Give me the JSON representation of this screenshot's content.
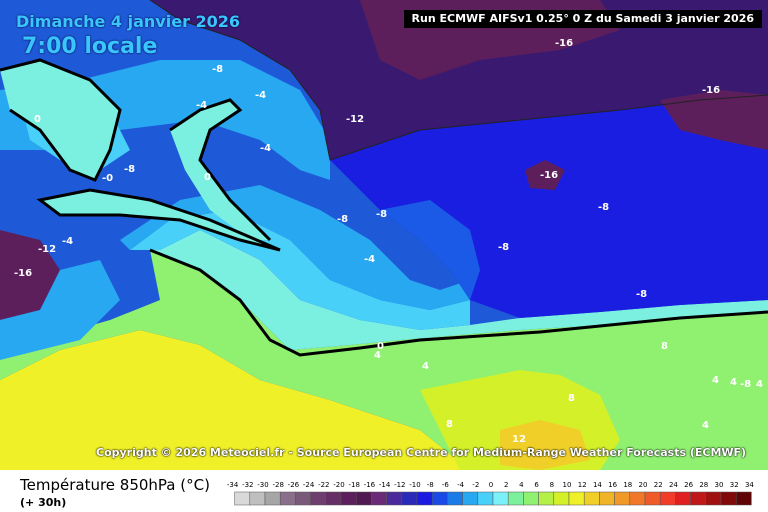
{
  "header": {
    "date": "Dimanche 4 janvier 2026",
    "time": "7:00 locale",
    "run": "Run ECMWF AIFSv1 0.25° 0 Z du Samedi 3 janvier 2026"
  },
  "footer": {
    "copyright": "Copyright © 2026 Meteociel.fr - Source European Centre for Medium-Range Weather Forecasts (ECMWF)",
    "parameter": "Température 850hPa (°C)",
    "lead_time": "(+ 30h)"
  },
  "legend": {
    "ticks": [
      "-34",
      "-32",
      "-30",
      "-28",
      "-26",
      "-24",
      "-22",
      "-20",
      "-18",
      "-16",
      "-14",
      "-12",
      "-10",
      "-8",
      "-6",
      "-4",
      "-2",
      "0",
      "2",
      "4",
      "6",
      "8",
      "10",
      "12",
      "14",
      "16",
      "18",
      "20",
      "22",
      "24",
      "26",
      "28",
      "30",
      "32",
      "34"
    ],
    "colors": [
      "#d9d9d9",
      "#bfbfbf",
      "#a6a6a6",
      "#8a6f8a",
      "#7a5a7a",
      "#6e3f6e",
      "#652e65",
      "#5c1f5c",
      "#521852",
      "#6a2a78",
      "#4a2a9a",
      "#2a2ab8",
      "#1a1ae0",
      "#1a4ae6",
      "#1a7ae6",
      "#28a8f0",
      "#48d0f8",
      "#7cf0f8",
      "#7cf09c",
      "#90f070",
      "#b4f048",
      "#d4f028",
      "#f0f028",
      "#f0d028",
      "#f0b428",
      "#f09828",
      "#f07828",
      "#f05a28",
      "#f03c28",
      "#e02020",
      "#c01818",
      "#a01010",
      "#800a0a",
      "#600505"
    ]
  },
  "map": {
    "colors": {
      "ocean_west": "#1e5ad8",
      "deep_blue": "#1a1ee0",
      "mid_blue": "#1a5ae6",
      "light_blue": "#28a8f0",
      "cyan": "#48d0f8",
      "aqua": "#7cf0e0",
      "green": "#90f070",
      "yellow_green": "#c8f040",
      "yellow": "#f0f028",
      "purple": "#5c1f5c",
      "dark_purple": "#3a1a50",
      "indigo": "#2a2ab8"
    },
    "labels": [
      "-16",
      "-16",
      "-16",
      "-16",
      "-12",
      "-12",
      "-8",
      "-8",
      "-8",
      "-8",
      "-8",
      "-8",
      "-8",
      "-8",
      "-4",
      "-4",
      "-4",
      "-4",
      "-4",
      "0",
      "0",
      "0",
      "-0",
      "4",
      "4",
      "4",
      "4",
      "4",
      "4",
      "8",
      "8",
      "8",
      "12"
    ]
  }
}
